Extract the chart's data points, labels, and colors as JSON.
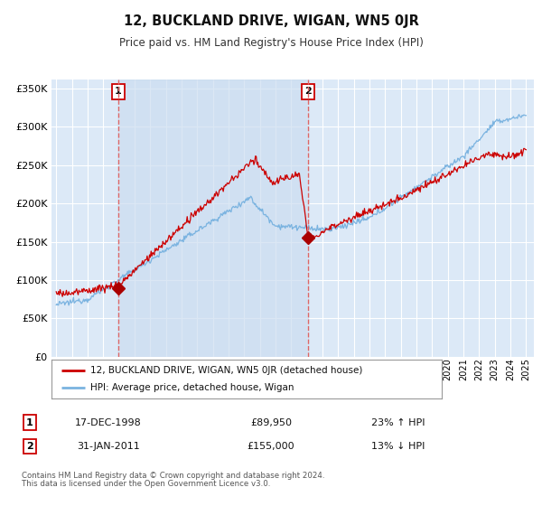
{
  "title": "12, BUCKLAND DRIVE, WIGAN, WN5 0JR",
  "subtitle": "Price paid vs. HM Land Registry's House Price Index (HPI)",
  "background_color": "#ffffff",
  "plot_bg_color": "#dce9f7",
  "grid_color": "#ffffff",
  "sale1_date_num": 1998.96,
  "sale1_price": 89950,
  "sale1_label": "1",
  "sale2_date_num": 2011.08,
  "sale2_price": 155000,
  "sale2_label": "2",
  "vline1_x": 1998.96,
  "vline2_x": 2011.08,
  "ylabel_ticks": [
    "£0",
    "£50K",
    "£100K",
    "£150K",
    "£200K",
    "£250K",
    "£300K",
    "£350K"
  ],
  "ytick_values": [
    0,
    50000,
    100000,
    150000,
    200000,
    250000,
    300000,
    350000
  ],
  "ylim": [
    0,
    362000
  ],
  "xlim_min": 1994.7,
  "xlim_max": 2025.5,
  "legend_line1": "12, BUCKLAND DRIVE, WIGAN, WN5 0JR (detached house)",
  "legend_line2": "HPI: Average price, detached house, Wigan",
  "table_row1": [
    "1",
    "17-DEC-1998",
    "£89,950",
    "23% ↑ HPI"
  ],
  "table_row2": [
    "2",
    "31-JAN-2011",
    "£155,000",
    "13% ↓ HPI"
  ],
  "footer_line1": "Contains HM Land Registry data © Crown copyright and database right 2024.",
  "footer_line2": "This data is licensed under the Open Government Licence v3.0.",
  "hpi_color": "#7ab3e0",
  "price_color": "#cc0000",
  "sale_dot_color": "#aa0000",
  "shade_color": "#ccddf0",
  "vline_color": "#dd6666"
}
